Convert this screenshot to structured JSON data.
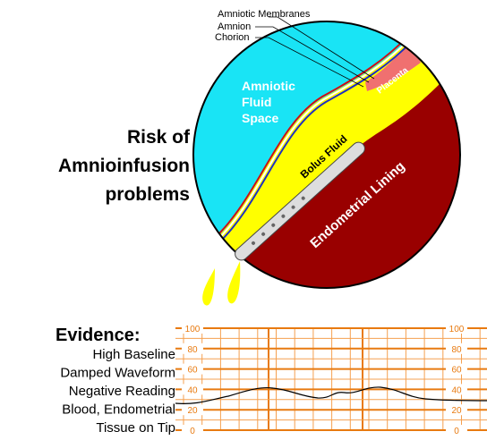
{
  "title": [
    "Risk of",
    "Amnioinfusion",
    "problems"
  ],
  "labels": {
    "amniotic_membranes": "Amniotic Membranes",
    "amnion": "Amnion",
    "chorion": "Chorion",
    "amniotic_fluid_space": [
      "Amniotic",
      "Fluid",
      "Space"
    ],
    "placenta": "Placenta",
    "bolus_fluid": "Bolus Fluid",
    "endometrial_lining": "Endometrial Lining"
  },
  "evidence": {
    "heading": "Evidence:",
    "items": [
      "High Baseline",
      "Damped Waveform",
      "Negative Reading",
      "Blood, Endometrial",
      "Tissue on Tip"
    ]
  },
  "strip": {
    "scale_left": [
      100,
      80,
      60,
      40,
      20,
      0
    ],
    "scale_right": [
      100,
      80,
      60,
      40,
      20,
      0
    ]
  }
}
